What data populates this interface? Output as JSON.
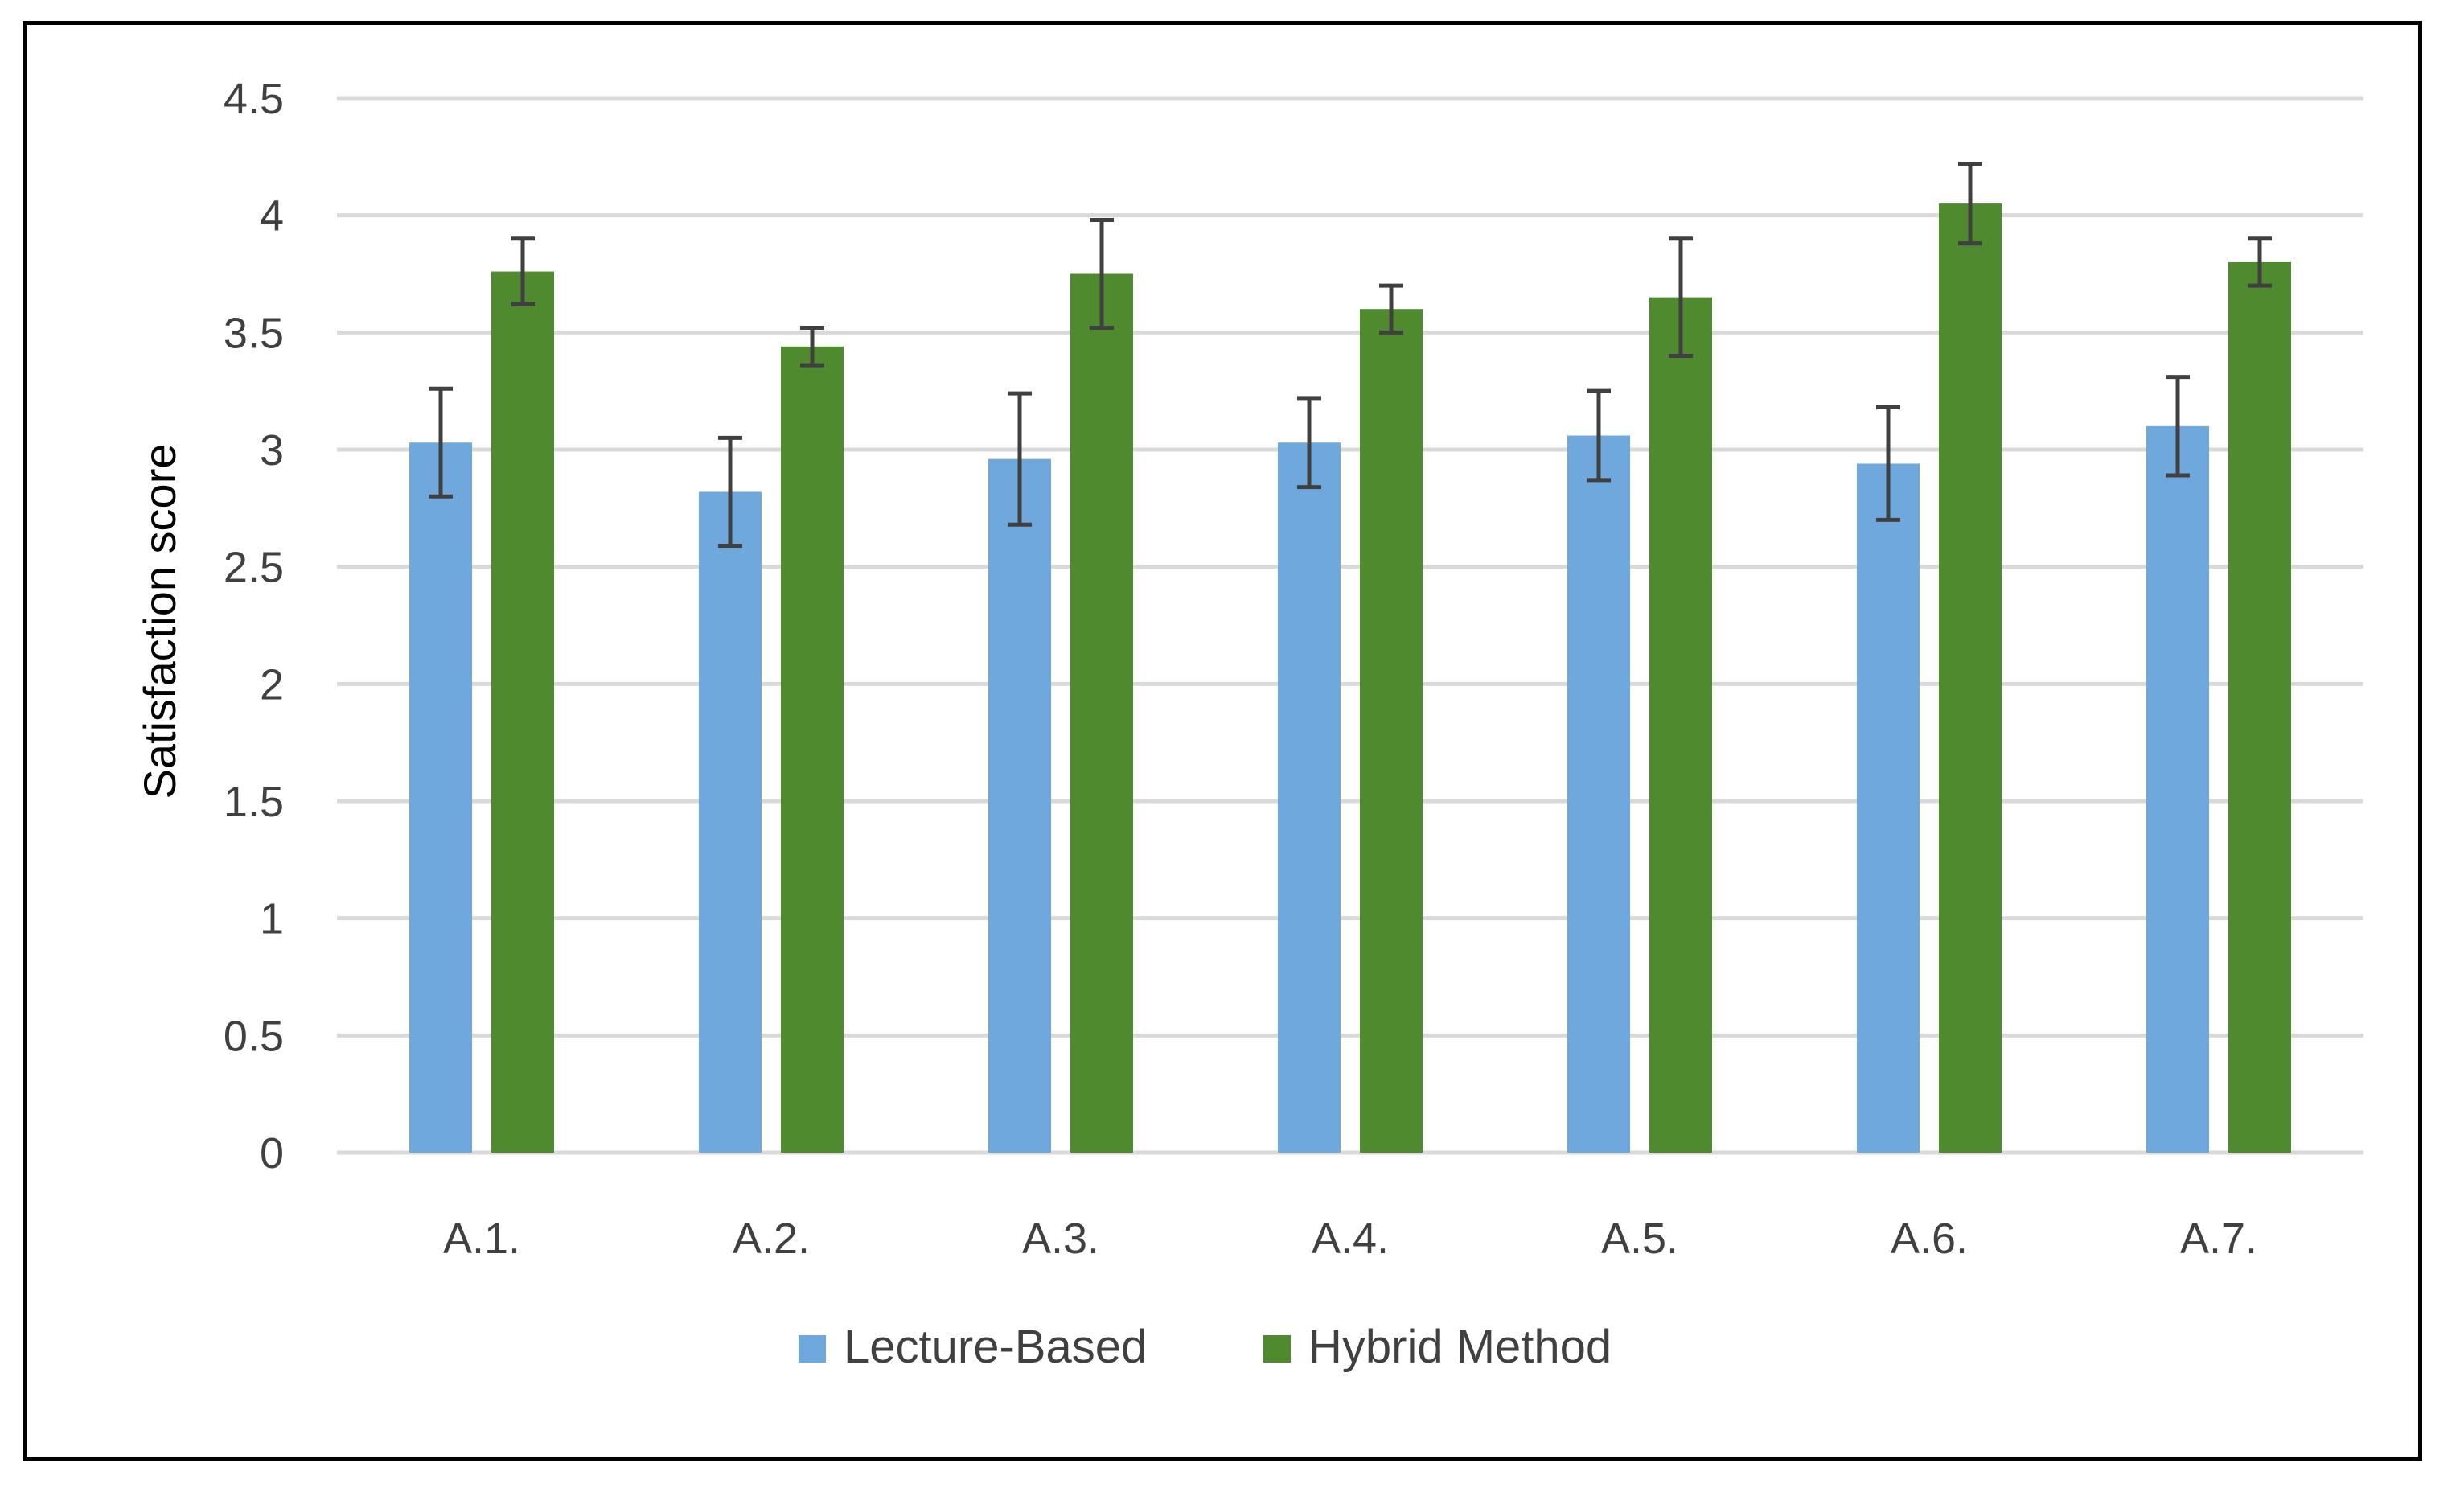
{
  "chart_data": {
    "type": "bar",
    "title": "",
    "xlabel": "",
    "ylabel": "Satisfaction score",
    "ylim": [
      0,
      4.5
    ],
    "yticks": [
      "0",
      "0.5",
      "1",
      "1.5",
      "2",
      "2.5",
      "3",
      "3.5",
      "4",
      "4.5"
    ],
    "ytick_values": [
      0,
      0.5,
      1,
      1.5,
      2,
      2.5,
      3,
      3.5,
      4,
      4.5
    ],
    "grid": true,
    "legend_position": "bottom-center",
    "categories": [
      "A.1.",
      "A.2.",
      "A.3.",
      "A.4.",
      "A.5.",
      "A.6.",
      "A.7."
    ],
    "series": [
      {
        "name": "Lecture-Based",
        "color": "#6fa8dc",
        "values": [
          3.03,
          2.82,
          2.96,
          3.03,
          3.06,
          2.94,
          3.1
        ],
        "error": [
          0.23,
          0.23,
          0.28,
          0.19,
          0.19,
          0.24,
          0.21
        ]
      },
      {
        "name": "Hybrid Method",
        "color": "#4f8a2f",
        "values": [
          3.76,
          3.44,
          3.75,
          3.6,
          3.65,
          4.05,
          3.8
        ],
        "error": [
          0.14,
          0.08,
          0.23,
          0.1,
          0.25,
          0.17,
          0.1
        ]
      }
    ],
    "gridline_color": "#d9d9d9",
    "errorbar_color": "#404040"
  }
}
